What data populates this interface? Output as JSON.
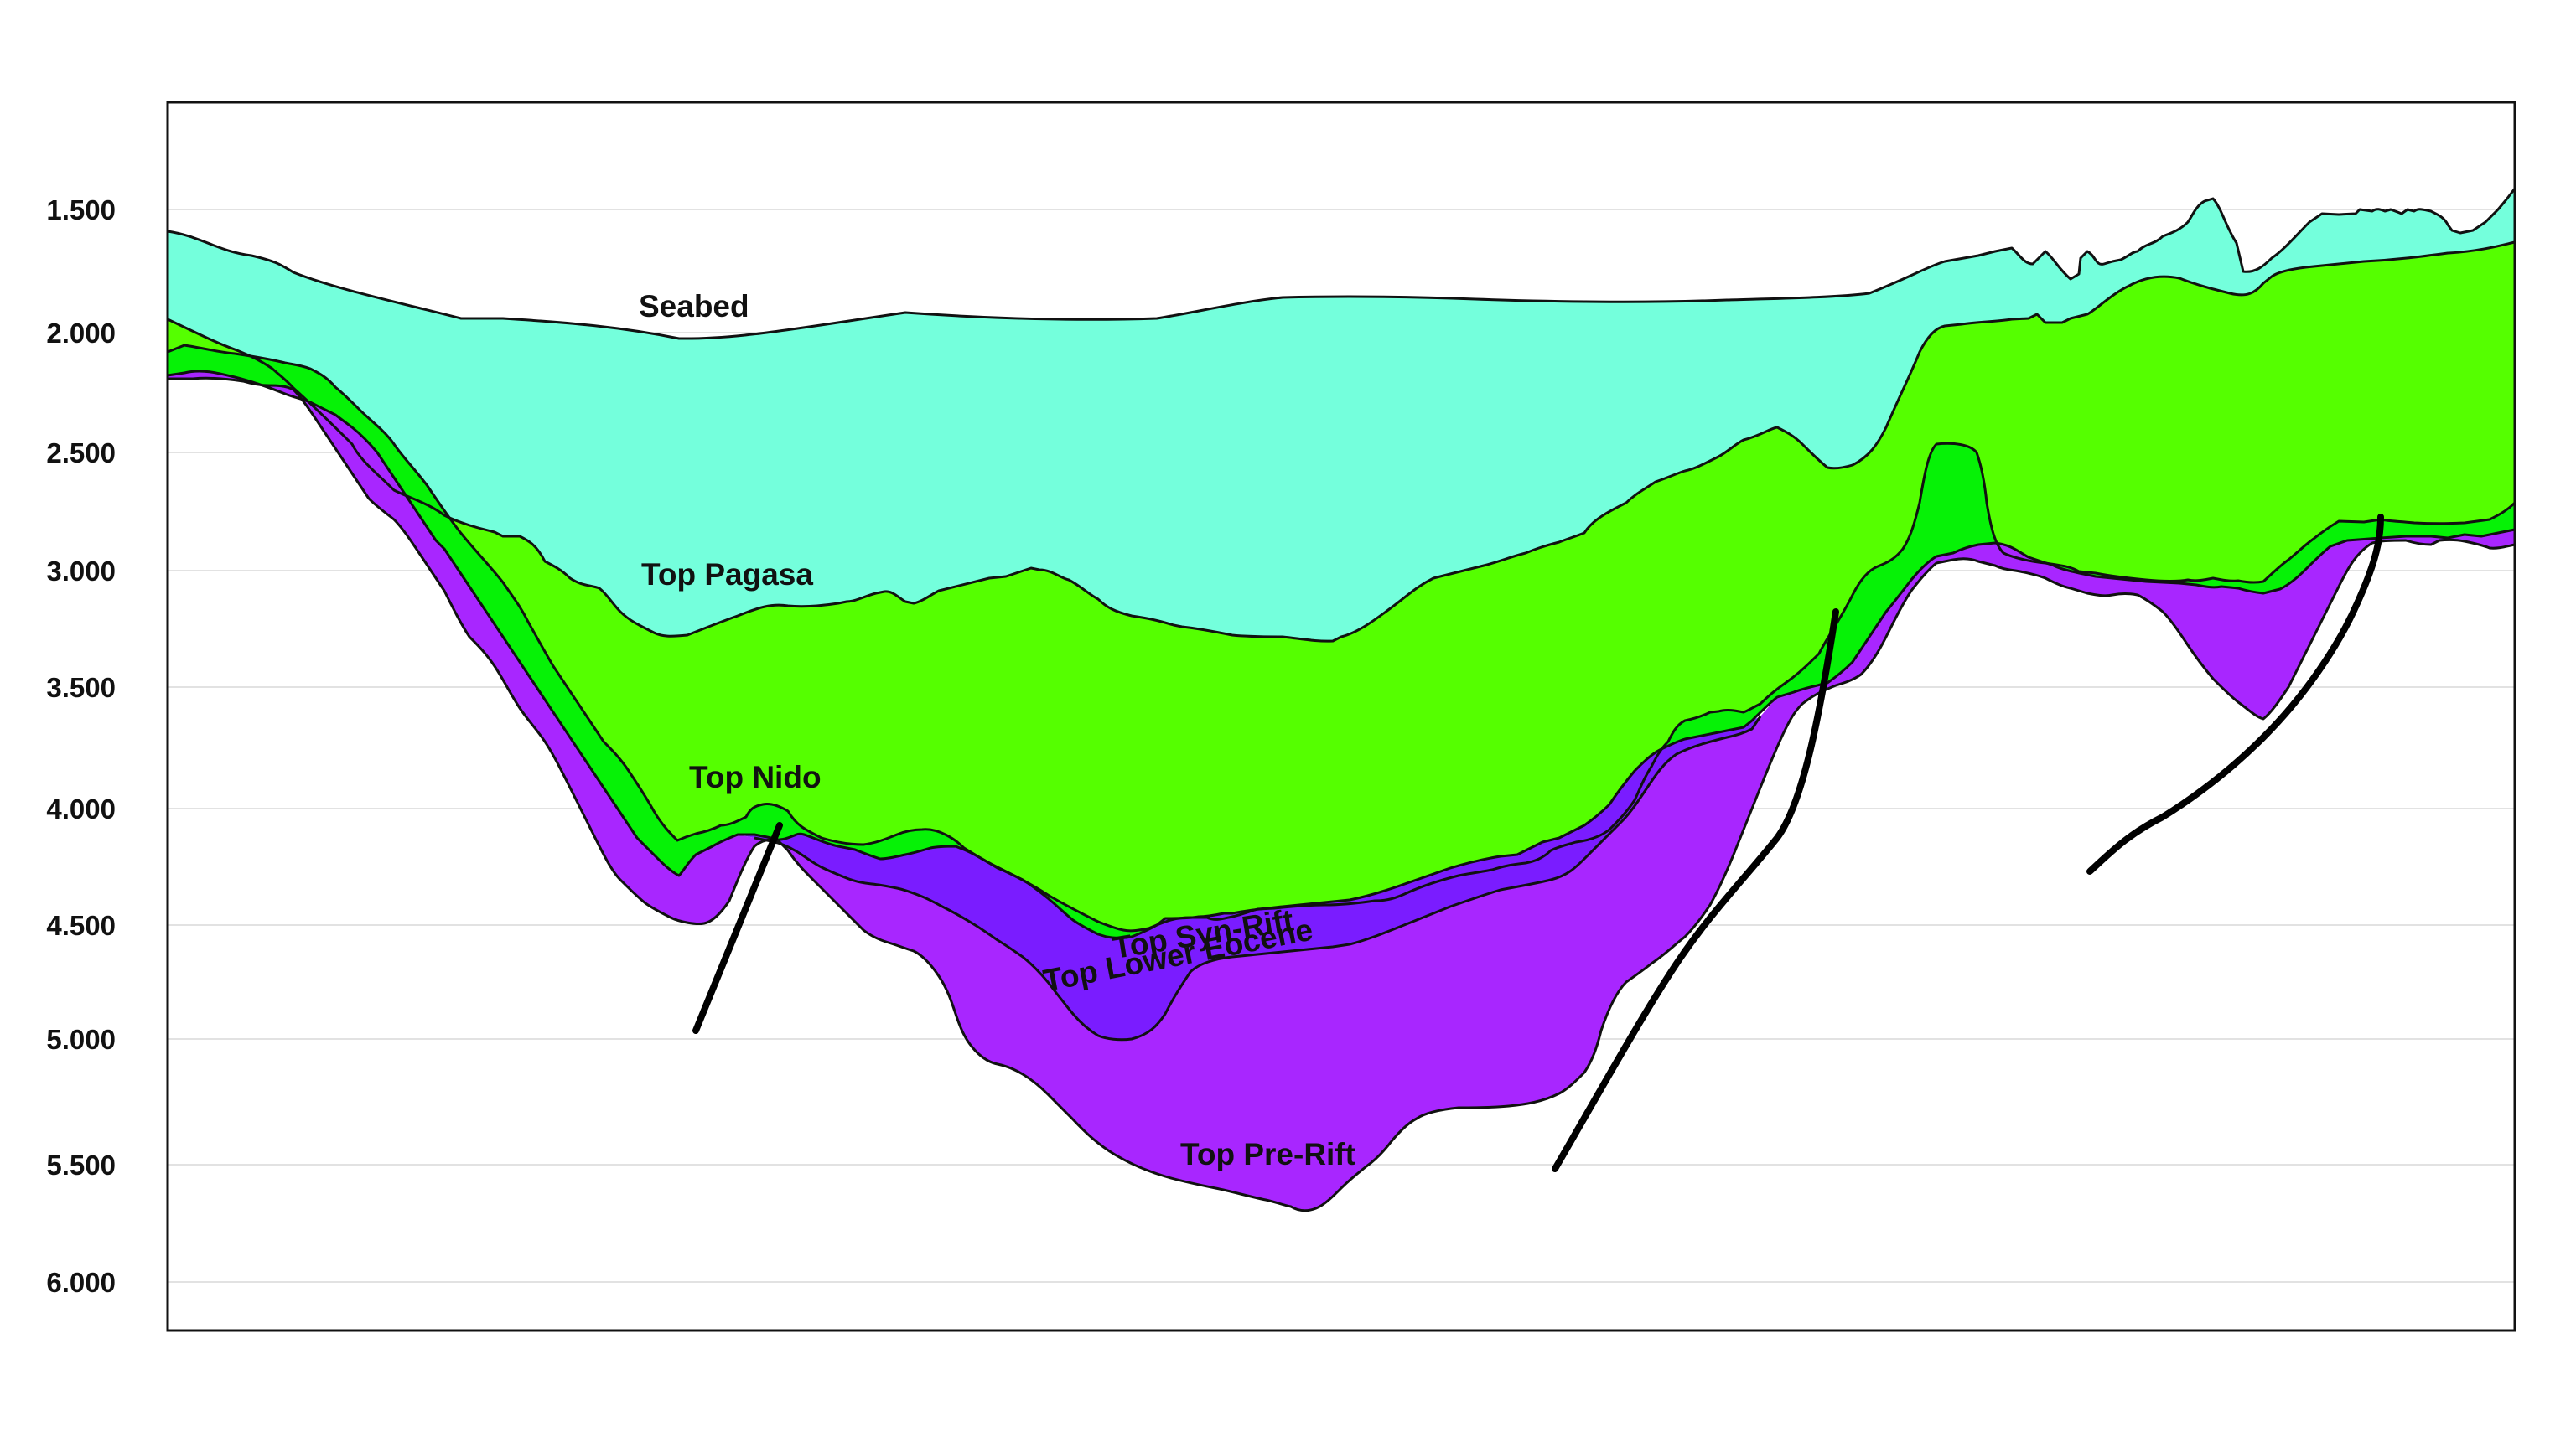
{
  "axis": {
    "ticks": [
      "1.500",
      "2.000",
      "2.500",
      "3.000",
      "3.500",
      "4.000",
      "4.500",
      "5.000",
      "5.500",
      "6.000"
    ]
  },
  "horizons": {
    "seabed": "Seabed",
    "top_pagasa": "Top Pagasa",
    "top_nido": "Top Nido",
    "top_syn_rift": "Top Syn-Rift",
    "top_lower_eocene": "Top Lower Eocene",
    "top_pre_rift": "Top Pre-Rift"
  },
  "colors": {
    "water": "#74ffdc",
    "pagasa_layer": "#55ff00",
    "nido_layer": "#06f206",
    "lower_eocene_layer": "#7a1cff",
    "pre_rift_layer": "#a826ff",
    "frame": "#111111",
    "fault": "#000000"
  }
}
